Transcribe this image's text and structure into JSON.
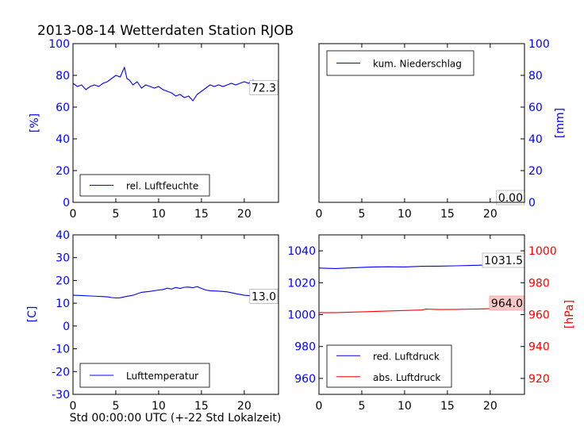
{
  "title": "2013-08-14 Wetterdaten Station RJOB",
  "xlabel": "Std 00:00:00 UTC (+-22 Std Lokalzeit)",
  "colors": {
    "blue": "#0000ff",
    "red": "#ff0000",
    "black": "#000000"
  },
  "chart_data": [
    {
      "type": "line",
      "position": "top-left",
      "ylabel": "[%]",
      "xlim": [
        0,
        24
      ],
      "ylim": [
        0,
        100
      ],
      "xticks": [
        0,
        5,
        10,
        15,
        20
      ],
      "yticks": [
        0,
        20,
        40,
        60,
        80,
        100
      ],
      "legend": {
        "placement": "lower-left",
        "entries": [
          "rel. Luftfeuchte"
        ]
      },
      "annotation": "72.3",
      "series": [
        {
          "name": "rel. Luftfeuchte",
          "color": "#0000ff",
          "x": [
            0,
            0.5,
            1,
            1.5,
            2,
            2.5,
            3,
            3.5,
            4,
            4.5,
            5,
            5.5,
            6,
            6.3,
            6.6,
            7,
            7.5,
            8,
            8.5,
            9,
            9.5,
            10,
            10.5,
            11,
            11.5,
            12,
            12.5,
            13,
            13.5,
            14,
            14.5,
            15,
            15.5,
            16,
            16.5,
            17,
            17.5,
            18,
            18.5,
            19,
            19.5,
            20,
            20.5,
            21,
            21.5,
            22,
            22.5,
            23,
            23.5,
            24
          ],
          "y": [
            75,
            73,
            74,
            71,
            73,
            74,
            73,
            75,
            76,
            78,
            80,
            79,
            85,
            78,
            77,
            74,
            76,
            72,
            74,
            73,
            72,
            73,
            71,
            70,
            69,
            67,
            68,
            66,
            67,
            64,
            68,
            70,
            72,
            74,
            73,
            74,
            73,
            74,
            75,
            74,
            75,
            76,
            75,
            77,
            76,
            75,
            74,
            76,
            74,
            73
          ]
        }
      ]
    },
    {
      "type": "line",
      "position": "top-right",
      "ylabel": "[mm]",
      "xlim": [
        0,
        24
      ],
      "ylim": [
        0,
        100
      ],
      "xticks": [
        0,
        5,
        10,
        15,
        20
      ],
      "yticks": [
        0,
        20,
        40,
        60,
        80,
        100
      ],
      "legend": {
        "placement": "upper-left",
        "entries": [
          "kum. Niederschlag"
        ]
      },
      "annotation": "0.00",
      "series": [
        {
          "name": "kum. Niederschlag",
          "color": "#0000ff",
          "x": [
            0,
            24
          ],
          "y": [
            0,
            0
          ]
        }
      ]
    },
    {
      "type": "line",
      "position": "bottom-left",
      "ylabel": "[C]",
      "xlim": [
        0,
        24
      ],
      "ylim": [
        -30,
        40
      ],
      "xticks": [
        0,
        5,
        10,
        15,
        20
      ],
      "yticks": [
        -30,
        -20,
        -10,
        0,
        10,
        20,
        30,
        40
      ],
      "legend": {
        "placement": "lower-left",
        "entries": [
          "Lufttemperatur"
        ]
      },
      "annotation": "13.0",
      "series": [
        {
          "name": "Lufttemperatur",
          "color": "#0000ff",
          "x": [
            0,
            1,
            2,
            3,
            4,
            4.5,
            5,
            5.5,
            6,
            7,
            8,
            8.5,
            9,
            10,
            10.5,
            11,
            11.5,
            12,
            12.5,
            13,
            13.5,
            14,
            14.5,
            15,
            15.5,
            16,
            17,
            18,
            19,
            20,
            21,
            22,
            23,
            24
          ],
          "y": [
            13.5,
            13.4,
            13.2,
            13,
            12.8,
            12.5,
            12.3,
            12.4,
            12.8,
            13.5,
            14.8,
            15,
            15.2,
            15.8,
            16,
            16.6,
            16.2,
            16.9,
            16.5,
            17,
            17.1,
            16.8,
            17.3,
            16.5,
            15.8,
            15.5,
            15.3,
            15,
            14.2,
            13.5,
            13.2,
            13.1,
            13,
            13
          ]
        }
      ]
    },
    {
      "type": "line",
      "position": "bottom-right",
      "ylabel": "[hPa]",
      "xlim": [
        0,
        24
      ],
      "ylim_left": [
        950,
        1050
      ],
      "ylim_right": [
        910,
        1010
      ],
      "xticks": [
        0,
        5,
        10,
        15,
        20
      ],
      "yticks_left": [
        960,
        980,
        1000,
        1020,
        1040
      ],
      "yticks_right": [
        920,
        940,
        960,
        980,
        1000
      ],
      "legend": {
        "placement": "lower-left",
        "entries": [
          "red. Luftdruck",
          "abs. Luftdruck"
        ]
      },
      "annotations": [
        "1031.5",
        "964.0"
      ],
      "series": [
        {
          "name": "red. Luftdruck",
          "color": "#0000ff",
          "axis": "left",
          "x": [
            0,
            1,
            2,
            4,
            6,
            8,
            10,
            12,
            14,
            16,
            18,
            19,
            20,
            21,
            22,
            23,
            24
          ],
          "y": [
            1029.2,
            1029.0,
            1028.9,
            1029.4,
            1029.8,
            1030.0,
            1029.9,
            1030.3,
            1030.4,
            1030.6,
            1030.9,
            1031.0,
            1031.2,
            1031.3,
            1031.4,
            1031.5,
            1031.5
          ]
        },
        {
          "name": "abs. Luftdruck",
          "color": "#ff0000",
          "axis": "right",
          "x": [
            0,
            2,
            4,
            6,
            8,
            10,
            12,
            12.5,
            14,
            16,
            18,
            19,
            20,
            21,
            22,
            23,
            24
          ],
          "y": [
            961.2,
            961.3,
            961.6,
            961.9,
            962.3,
            962.6,
            962.9,
            963.5,
            963.2,
            963.3,
            963.5,
            963.6,
            963.8,
            963.9,
            964.0,
            964.0,
            964.0
          ]
        }
      ]
    }
  ]
}
